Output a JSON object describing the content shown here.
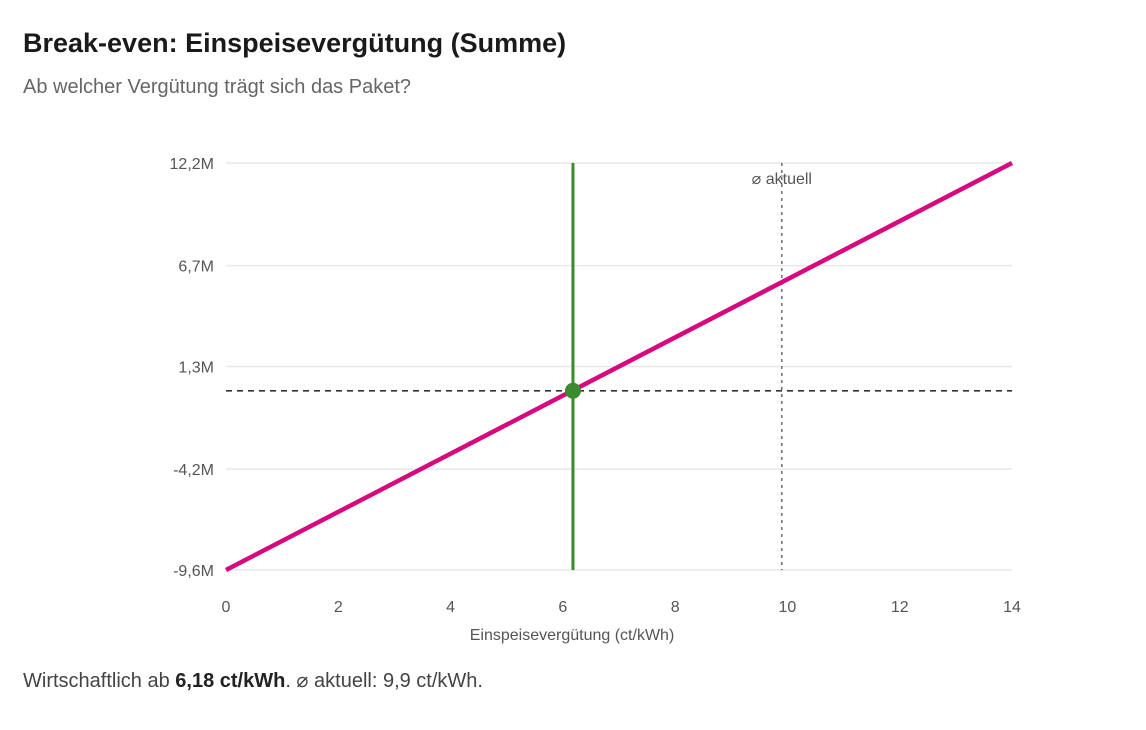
{
  "header": {
    "title": "Break-even: Einspeisevergütung (Summe)",
    "subtitle": "Ab welcher Vergütung trägt sich das Paket?"
  },
  "summary": {
    "prefix": "Wirtschaftlich ab ",
    "breakeven_text": "6,18 ct/kWh",
    "suffix": ". ⌀ aktuell: 9,9 ct/kWh."
  },
  "colors": {
    "line": "#d6097e",
    "breakeven": "#3a8a2e",
    "grid": "#e8e8e8",
    "zero_line": "#333333",
    "current_line": "#777777"
  },
  "chart_data": {
    "type": "line",
    "title": "Break-even: Einspeisevergütung (Summe)",
    "subtitle": "Ab welcher Vergütung trägt sich das Paket?",
    "xlabel": "Einspeisevergütung (ct/kWh)",
    "ylabel": "",
    "xlim": [
      0,
      14
    ],
    "ylim": [
      -9.6,
      12.2
    ],
    "x_ticks": [
      0,
      2,
      4,
      6,
      8,
      10,
      12,
      14
    ],
    "x_tick_labels": [
      "0",
      "2",
      "4",
      "6",
      "8",
      "10",
      "12",
      "14"
    ],
    "y_ticks": [
      -9.6,
      -4.2,
      1.3,
      6.7,
      12.2
    ],
    "y_tick_labels": [
      "-9,6M",
      "-4,2M",
      "1,3M",
      "6,7M",
      "12,2M"
    ],
    "grid": true,
    "series": [
      {
        "x": [
          0,
          14
        ],
        "y": [
          -9.6,
          12.2
        ]
      }
    ],
    "breakeven": {
      "x": 6.18,
      "y": 0
    },
    "reference_lines": [
      {
        "orientation": "horizontal",
        "value": 0,
        "style": "dashed"
      },
      {
        "orientation": "vertical",
        "value": 6.18,
        "style": "solid"
      },
      {
        "orientation": "vertical",
        "value": 9.9,
        "style": "dotted",
        "label": "⌀ aktuell"
      }
    ]
  }
}
